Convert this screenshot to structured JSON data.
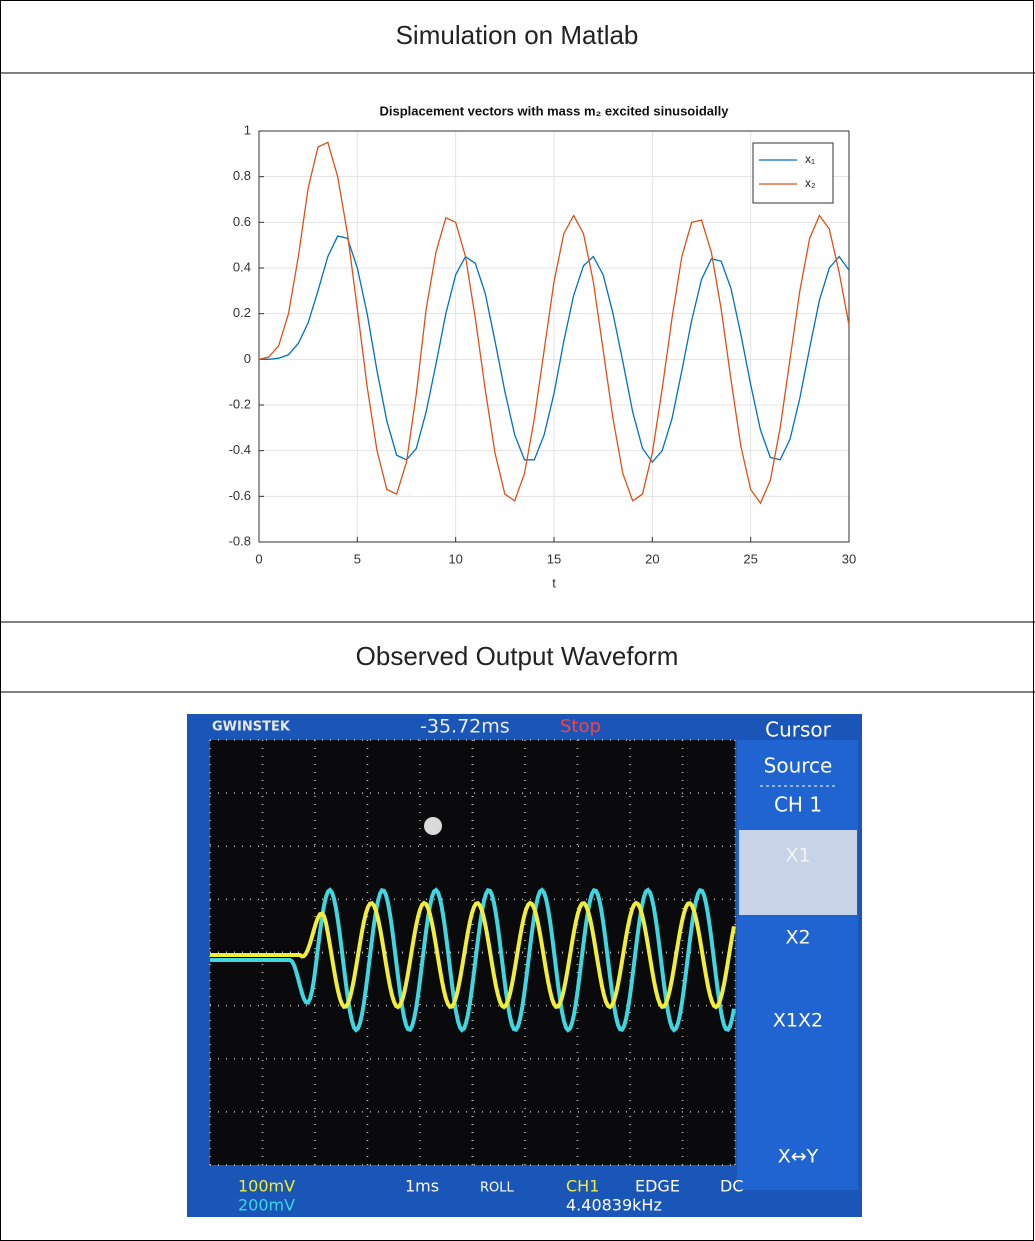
{
  "table": {
    "headers": [
      "Simulation on Matlab",
      "Observed Output Waveform"
    ]
  },
  "chart_data": {
    "type": "line",
    "title": "Displacement vectors with mass m₂ excited sinusoidally",
    "x_label": "t",
    "xlim": [
      0,
      30
    ],
    "ylim": [
      -0.8,
      1
    ],
    "xticks": [
      0,
      5,
      10,
      15,
      20,
      25,
      30
    ],
    "yticks": [
      -0.8,
      -0.6,
      -0.4,
      -0.2,
      0,
      0.2,
      0.4,
      0.6,
      0.8,
      1
    ],
    "grid": true,
    "legend": "upper right",
    "x": [
      0,
      0.5,
      1,
      1.5,
      2,
      2.5,
      3,
      3.5,
      4,
      4.5,
      5,
      5.5,
      6,
      6.5,
      7,
      7.5,
      8,
      8.5,
      9,
      9.5,
      10,
      10.5,
      11,
      11.5,
      12,
      12.5,
      13,
      13.5,
      14,
      14.5,
      15,
      15.5,
      16,
      16.5,
      17,
      17.5,
      18,
      18.5,
      19,
      19.5,
      20,
      20.5,
      21,
      21.5,
      22,
      22.5,
      23,
      23.5,
      24,
      24.5,
      25,
      25.5,
      26,
      26.5,
      27,
      27.5,
      28,
      28.5,
      29,
      29.5,
      30
    ],
    "series": [
      {
        "name": "x₁",
        "color": "#0072bd",
        "values": [
          0,
          0,
          0.005,
          0.02,
          0.07,
          0.16,
          0.3,
          0.45,
          0.54,
          0.53,
          0.4,
          0.2,
          -0.05,
          -0.27,
          -0.42,
          -0.44,
          -0.39,
          -0.23,
          -0.02,
          0.2,
          0.37,
          0.45,
          0.42,
          0.29,
          0.08,
          -0.14,
          -0.33,
          -0.44,
          -0.44,
          -0.33,
          -0.15,
          0.08,
          0.28,
          0.41,
          0.45,
          0.37,
          0.2,
          -0.01,
          -0.23,
          -0.39,
          -0.45,
          -0.4,
          -0.26,
          -0.05,
          0.17,
          0.35,
          0.44,
          0.43,
          0.31,
          0.11,
          -0.11,
          -0.31,
          -0.43,
          -0.44,
          -0.35,
          -0.17,
          0.05,
          0.26,
          0.4,
          0.45,
          0.39
        ]
      },
      {
        "name": "x₂",
        "color": "#d95319",
        "values": [
          0,
          0.01,
          0.06,
          0.2,
          0.45,
          0.75,
          0.93,
          0.95,
          0.8,
          0.55,
          0.22,
          -0.12,
          -0.4,
          -0.57,
          -0.59,
          -0.45,
          -0.15,
          0.22,
          0.47,
          0.62,
          0.6,
          0.45,
          0.18,
          -0.13,
          -0.41,
          -0.59,
          -0.62,
          -0.5,
          -0.26,
          0.04,
          0.34,
          0.55,
          0.63,
          0.55,
          0.34,
          0.04,
          -0.26,
          -0.5,
          -0.62,
          -0.59,
          -0.41,
          -0.13,
          0.18,
          0.45,
          0.6,
          0.61,
          0.47,
          0.22,
          -0.09,
          -0.38,
          -0.57,
          -0.63,
          -0.53,
          -0.3,
          0,
          0.3,
          0.53,
          0.63,
          0.57,
          0.38,
          0.15
        ]
      }
    ]
  },
  "screenshot": {
    "brand": "GWINSTEK",
    "trigger_time": "-35.72ms",
    "state": "Stop",
    "menu": [
      "Cursor",
      "Source",
      "CH 1",
      "X1",
      "X2",
      "X1X2",
      "X↔Y"
    ],
    "ch1_scale": "100mV",
    "ch2_scale": "200mV",
    "timebase": "1ms",
    "mode": "ROLL",
    "trigger_source": "CH1",
    "trigger_type": "EDGE",
    "coupling": "DC",
    "frequency": "4.40839kHz"
  }
}
